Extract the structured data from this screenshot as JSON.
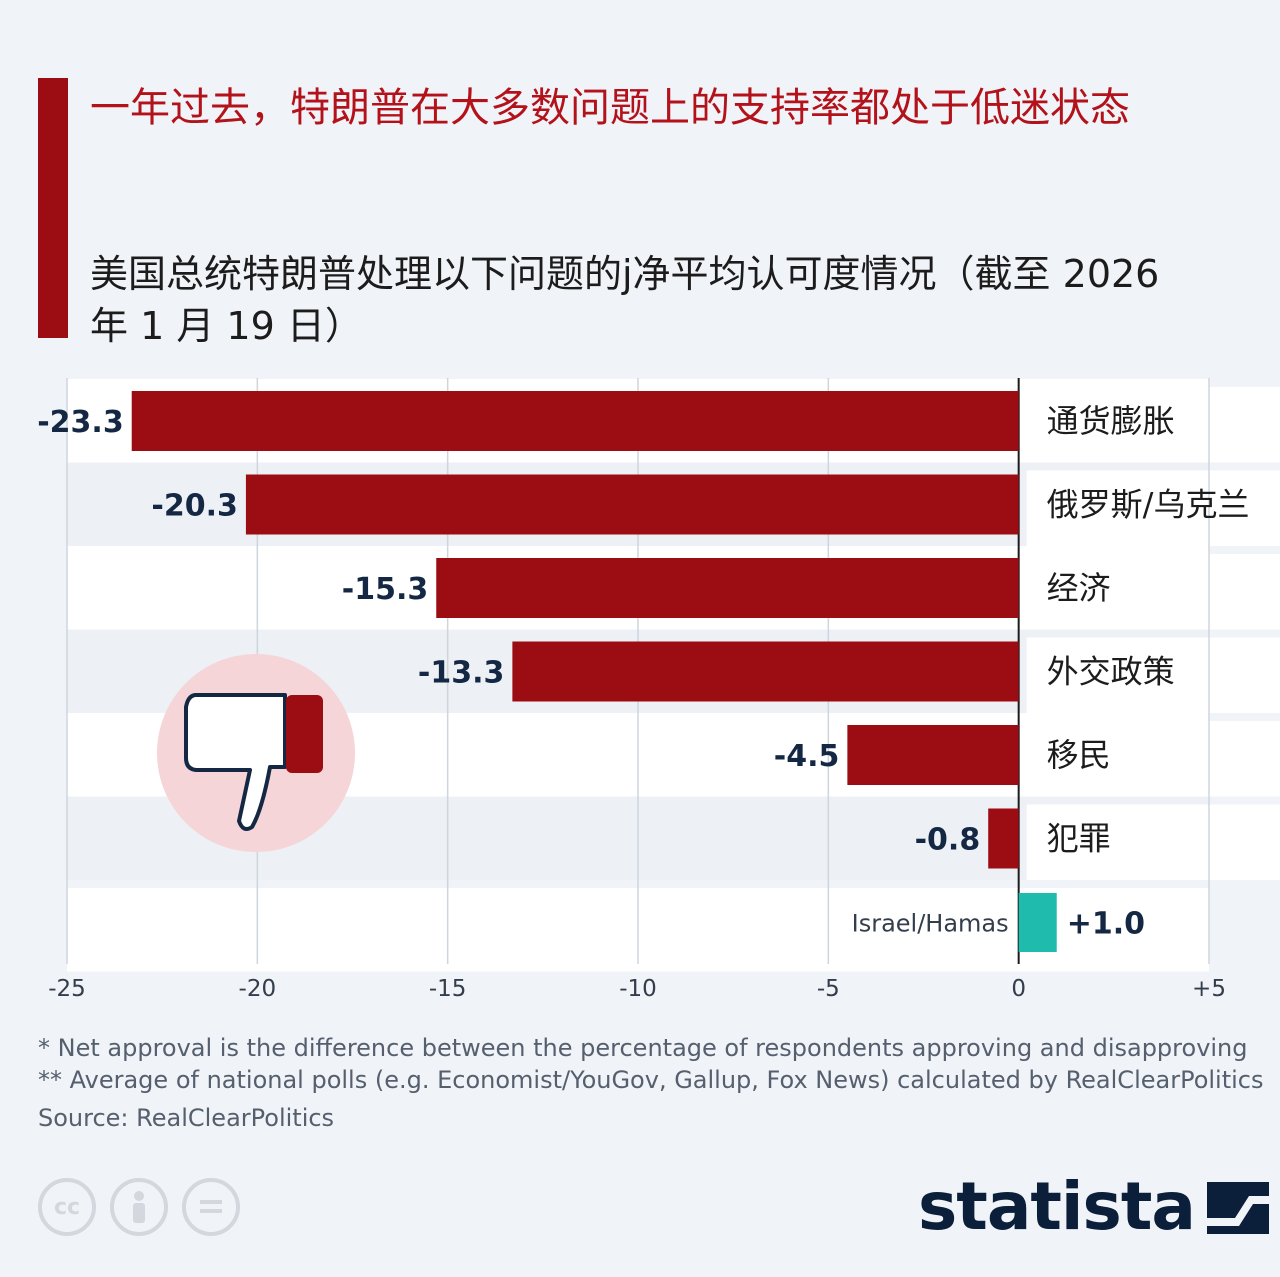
{
  "title": "一年过去，特朗普在大多数问题上的支持率都处于低迷状态",
  "subtitle": "美国总统特朗普处理以下问题的j净平均认可度情况（截至 2026 年 1 月 19 日）",
  "notes": [
    "*   Net approval is the difference between the percentage of respondents approving and disapproving",
    "** Average of national polls (e.g. Economist/YouGov, Gallup, Fox News) calculated by RealClearPolitics"
  ],
  "source": "Source: RealClearPolitics",
  "brand": "statista",
  "colors": {
    "negative": "#9b0d12",
    "positive": "#1fbcae",
    "title": "#b3121a",
    "value_label": "#142844",
    "thumb_circle": "#f5d5d7"
  },
  "icons": {
    "thumb": "thumbs-down-icon",
    "cc": [
      "cc-icon",
      "attribution-icon",
      "no-derivatives-icon"
    ]
  },
  "chart_data": {
    "type": "bar",
    "orientation": "horizontal",
    "categories": [
      "通货膨胀",
      "俄罗斯/乌克兰",
      "经济",
      "外交政策",
      "移民",
      "犯罪",
      "Israel/Hamas"
    ],
    "values": [
      -23.3,
      -20.3,
      -15.3,
      -13.3,
      -4.5,
      -0.8,
      1.0
    ],
    "value_labels": [
      "-23.3",
      "-20.3",
      "-15.3",
      "-13.3",
      "-4.5",
      "-0.8",
      "+1.0"
    ],
    "xlim": [
      -25,
      5
    ],
    "ticks": [
      -25,
      -20,
      -15,
      -10,
      -5,
      0,
      5
    ],
    "tick_labels": [
      "-25",
      "-20",
      "-15",
      "-10",
      "-5",
      "0",
      "+5"
    ],
    "grid": true,
    "xlabel": "",
    "ylabel": ""
  }
}
